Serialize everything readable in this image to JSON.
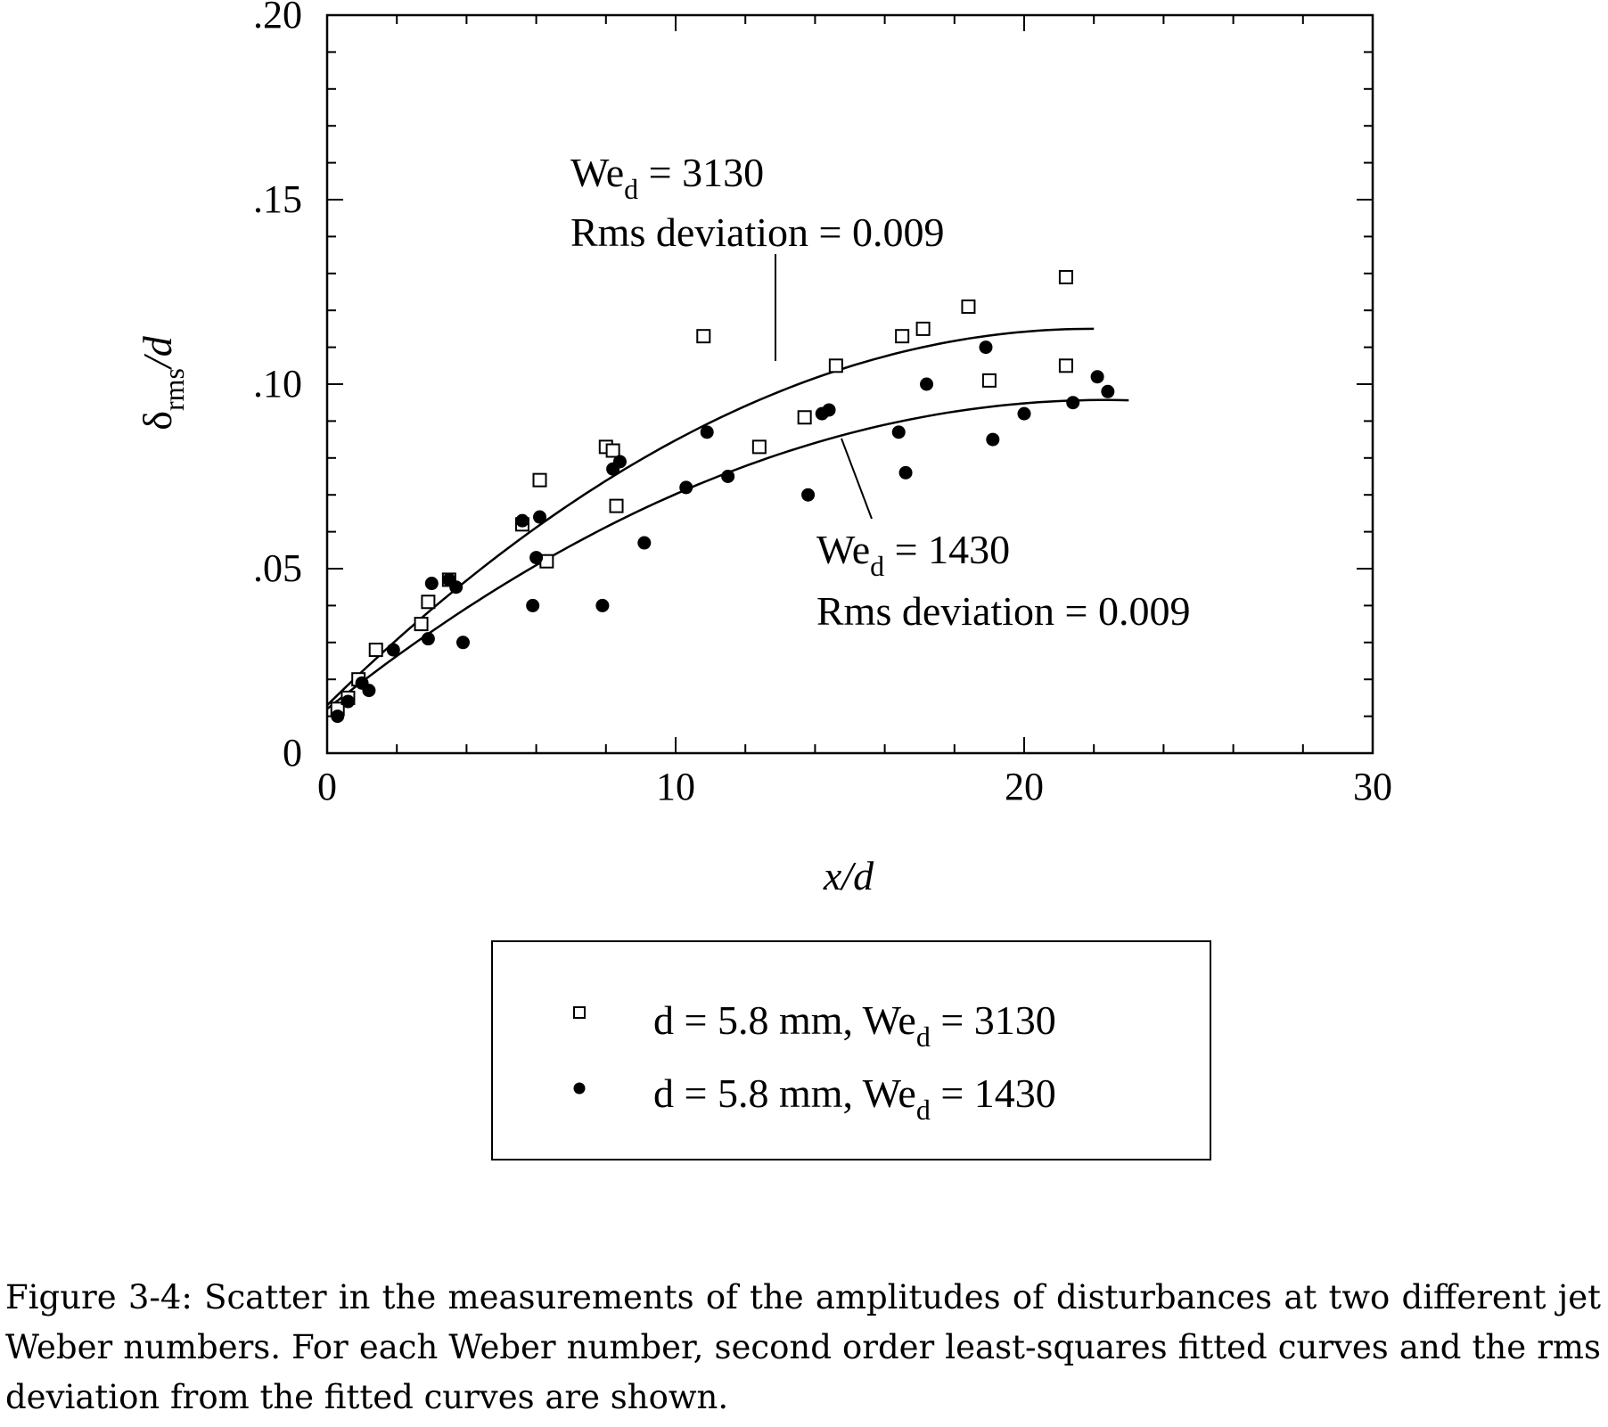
{
  "chart_data": {
    "type": "scatter",
    "xlabel": "x/d",
    "ylabel_main": "δ",
    "ylabel_sub": "rms",
    "ylabel_tail": "/d",
    "xlim": [
      0,
      30
    ],
    "ylim": [
      0,
      0.2
    ],
    "x_ticks": [
      {
        "value": 0,
        "label": "0"
      },
      {
        "value": 10,
        "label": "10"
      },
      {
        "value": 20,
        "label": "20"
      },
      {
        "value": 30,
        "label": "30"
      }
    ],
    "y_ticks": [
      {
        "value": 0,
        "label": "0"
      },
      {
        "value": 0.05,
        "label": ".05"
      },
      {
        "value": 0.1,
        "label": ".10"
      },
      {
        "value": 0.15,
        "label": ".15"
      },
      {
        "value": 0.2,
        "label": ".20"
      }
    ],
    "grid": false,
    "legend_position": "below",
    "series": [
      {
        "name": "d = 5.8 mm, We_d = 3130",
        "marker": "open-square",
        "points": [
          [
            0.3,
            0.012
          ],
          [
            0.6,
            0.015
          ],
          [
            0.9,
            0.02
          ],
          [
            1.4,
            0.028
          ],
          [
            2.7,
            0.035
          ],
          [
            2.9,
            0.041
          ],
          [
            3.5,
            0.047
          ],
          [
            5.6,
            0.062
          ],
          [
            6.1,
            0.074
          ],
          [
            6.3,
            0.052
          ],
          [
            8.0,
            0.083
          ],
          [
            8.2,
            0.082
          ],
          [
            8.3,
            0.067
          ],
          [
            10.8,
            0.113
          ],
          [
            12.4,
            0.083
          ],
          [
            13.7,
            0.091
          ],
          [
            14.6,
            0.105
          ],
          [
            16.5,
            0.113
          ],
          [
            17.1,
            0.115
          ],
          [
            18.4,
            0.121
          ],
          [
            19.0,
            0.101
          ],
          [
            21.2,
            0.129
          ],
          [
            21.2,
            0.105
          ]
        ],
        "fit": [
          [
            0,
            0.013
          ],
          [
            22,
            0.115
          ]
        ],
        "fit_coeffs": [
          0.013,
          0.0093,
          -0.000212
        ]
      },
      {
        "name": "d = 5.8 mm, We_d = 1430",
        "marker": "filled-circle",
        "points": [
          [
            0.3,
            0.01
          ],
          [
            0.6,
            0.014
          ],
          [
            1.0,
            0.019
          ],
          [
            1.2,
            0.017
          ],
          [
            1.9,
            0.028
          ],
          [
            2.9,
            0.031
          ],
          [
            3.0,
            0.046
          ],
          [
            3.5,
            0.047
          ],
          [
            3.7,
            0.045
          ],
          [
            3.9,
            0.03
          ],
          [
            5.6,
            0.063
          ],
          [
            5.9,
            0.04
          ],
          [
            6.0,
            0.053
          ],
          [
            6.1,
            0.064
          ],
          [
            7.9,
            0.04
          ],
          [
            8.2,
            0.077
          ],
          [
            8.4,
            0.079
          ],
          [
            9.1,
            0.057
          ],
          [
            10.3,
            0.072
          ],
          [
            10.9,
            0.087
          ],
          [
            11.5,
            0.075
          ],
          [
            13.8,
            0.07
          ],
          [
            14.2,
            0.092
          ],
          [
            14.4,
            0.093
          ],
          [
            16.4,
            0.087
          ],
          [
            16.6,
            0.076
          ],
          [
            17.2,
            0.1
          ],
          [
            18.9,
            0.11
          ],
          [
            19.1,
            0.085
          ],
          [
            20.0,
            0.092
          ],
          [
            21.4,
            0.095
          ],
          [
            22.1,
            0.102
          ],
          [
            22.4,
            0.098
          ]
        ],
        "fit": [
          [
            0,
            0.012
          ],
          [
            23,
            0.096
          ]
        ],
        "fit_coeffs": [
          0.012,
          0.0075,
          -0.000168
        ]
      }
    ],
    "annotations": [
      {
        "line1_main": "We",
        "line1_sub": "d",
        "line1_tail": " = 3130",
        "line2": "Rms deviation = 0.009"
      },
      {
        "line1_main": "We",
        "line1_sub": "d",
        "line1_tail": " = 1430",
        "line2": "Rms deviation = 0.009"
      }
    ],
    "legend": [
      {
        "prefix": "d = 5.8 mm, We",
        "sub": "d",
        "suffix": " = 3130",
        "marker": "open-square"
      },
      {
        "prefix": "d = 5.8 mm, We",
        "sub": "d",
        "suffix": " = 1430",
        "marker": "filled-circle"
      }
    ]
  },
  "caption": "Figure 3-4: Scatter in the measurements of the amplitudes of disturbances at two different jet Weber numbers. For each Weber number, second order least-squares fitted curves and the rms deviation from the fitted curves are shown."
}
